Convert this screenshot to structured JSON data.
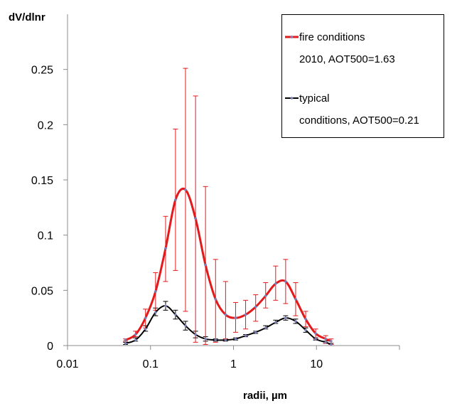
{
  "chart_data": {
    "type": "line",
    "title": "",
    "xlabel": "radii, µm",
    "ylabel": "dV/dlnr",
    "xscale": "log",
    "xlim": [
      0.01,
      100
    ],
    "ylim": [
      0,
      0.3
    ],
    "x_ticks": [
      0.01,
      0.1,
      1,
      10
    ],
    "x_tick_labels": [
      "0.01",
      "0.1",
      "1",
      "10"
    ],
    "y_ticks": [
      0,
      0.05,
      0.1,
      0.15,
      0.2,
      0.25
    ],
    "y_tick_labels": [
      "0",
      "0.05",
      "0.1",
      "0.15",
      "0.2",
      "0.25"
    ],
    "grid": false,
    "legend_position": "top-right",
    "x": [
      0.05,
      0.066,
      0.087,
      0.115,
      0.152,
      0.2,
      0.264,
      0.349,
      0.46,
      0.608,
      0.803,
      1.06,
      1.4,
      1.85,
      2.44,
      3.22,
      4.25,
      5.61,
      7.41,
      9.78,
      12.9,
      15.0
    ],
    "series": [
      {
        "name": "fire conditions 2010, AOT500=1.63",
        "legend_lines": [
          "fire conditions",
          "2010, AOT500=1.63"
        ],
        "color": "#e31a1c",
        "marker_color": "#7b7fb5",
        "values": [
          0.005,
          0.01,
          0.025,
          0.049,
          0.088,
          0.132,
          0.141,
          0.115,
          0.073,
          0.042,
          0.028,
          0.025,
          0.028,
          0.035,
          0.045,
          0.056,
          0.058,
          0.042,
          0.024,
          0.011,
          0.006,
          0.004
        ],
        "error_low": [
          0.004,
          0.008,
          0.016,
          0.032,
          0.058,
          0.068,
          0.031,
          0.003,
          0.001,
          0.003,
          0.006,
          0.012,
          0.015,
          0.022,
          0.034,
          0.041,
          0.038,
          0.027,
          0.017,
          0.006,
          0.002,
          0.001
        ],
        "error_high": [
          0.006,
          0.013,
          0.033,
          0.066,
          0.117,
          0.196,
          0.251,
          0.226,
          0.144,
          0.078,
          0.058,
          0.039,
          0.041,
          0.046,
          0.057,
          0.072,
          0.078,
          0.057,
          0.031,
          0.015,
          0.009,
          0.006
        ]
      },
      {
        "name": "typical conditions, AOT500=0.21",
        "legend_lines": [
          "typical",
          "conditions, AOT500=0.21"
        ],
        "color": "#000000",
        "marker_color": "#7b7fb5",
        "values": [
          0.002,
          0.005,
          0.015,
          0.03,
          0.036,
          0.028,
          0.018,
          0.01,
          0.006,
          0.005,
          0.005,
          0.006,
          0.009,
          0.012,
          0.016,
          0.021,
          0.025,
          0.022,
          0.014,
          0.006,
          0.003,
          0.001
        ],
        "error_low": [
          0.001,
          0.004,
          0.013,
          0.027,
          0.032,
          0.024,
          0.014,
          0.007,
          0.004,
          0.004,
          0.004,
          0.005,
          0.008,
          0.011,
          0.015,
          0.02,
          0.023,
          0.02,
          0.012,
          0.005,
          0.002,
          0.001
        ],
        "error_high": [
          0.003,
          0.007,
          0.018,
          0.034,
          0.04,
          0.032,
          0.022,
          0.013,
          0.008,
          0.006,
          0.006,
          0.007,
          0.01,
          0.013,
          0.018,
          0.023,
          0.027,
          0.024,
          0.016,
          0.007,
          0.004,
          0.002
        ]
      }
    ]
  }
}
